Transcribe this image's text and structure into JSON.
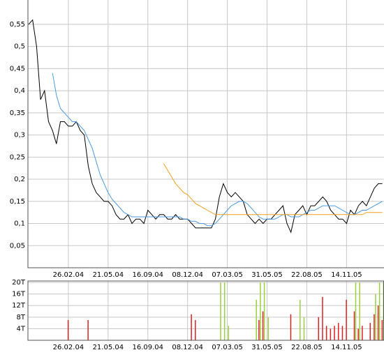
{
  "chart_data": [
    {
      "type": "line",
      "categories": [
        null,
        null,
        null,
        null,
        null,
        null,
        null,
        null,
        null,
        null,
        "26.02.04",
        null,
        null,
        null,
        null,
        null,
        null,
        null,
        null,
        null,
        "21.05.04",
        null,
        null,
        null,
        null,
        null,
        null,
        null,
        null,
        null,
        "16.09.04",
        null,
        null,
        null,
        null,
        null,
        null,
        null,
        null,
        null,
        "08.12.04",
        null,
        null,
        null,
        null,
        null,
        null,
        null,
        null,
        null,
        "07.03.05",
        null,
        null,
        null,
        null,
        null,
        null,
        null,
        null,
        null,
        "31.05.05",
        null,
        null,
        null,
        null,
        null,
        null,
        null,
        null,
        null,
        "22.08.05",
        null,
        null,
        null,
        null,
        null,
        null,
        null,
        null,
        null,
        "14.11.05",
        null,
        null,
        null,
        null,
        null,
        null,
        null,
        null,
        null
      ],
      "series": [
        {
          "color": "#000000",
          "values": [
            0.55,
            0.56,
            0.5,
            0.38,
            0.4,
            0.33,
            0.31,
            0.28,
            0.33,
            0.33,
            0.32,
            0.32,
            0.33,
            0.31,
            0.3,
            0.23,
            0.19,
            0.17,
            0.16,
            0.15,
            0.15,
            0.14,
            0.12,
            0.11,
            0.11,
            0.12,
            0.1,
            0.11,
            0.11,
            0.1,
            0.13,
            0.12,
            0.11,
            0.12,
            0.12,
            0.11,
            0.11,
            0.12,
            0.11,
            0.11,
            0.11,
            0.1,
            0.09,
            0.09,
            0.09,
            0.09,
            0.09,
            0.11,
            0.16,
            0.19,
            0.17,
            0.16,
            0.17,
            0.16,
            0.15,
            0.12,
            0.11,
            0.1,
            0.11,
            0.1,
            0.11,
            0.11,
            0.12,
            0.13,
            0.14,
            0.1,
            0.08,
            0.12,
            0.13,
            0.14,
            0.12,
            0.14,
            0.14,
            0.15,
            0.16,
            0.15,
            0.13,
            0.12,
            0.11,
            0.11,
            0.1,
            0.13,
            0.12,
            0.14,
            0.15,
            0.14,
            0.16,
            0.18,
            0.19,
            0.19
          ]
        },
        {
          "color": "#4a9be0",
          "values": [
            null,
            null,
            null,
            null,
            null,
            null,
            0.44,
            0.39,
            0.36,
            0.35,
            0.34,
            0.33,
            0.33,
            0.32,
            0.31,
            0.29,
            0.27,
            0.24,
            0.21,
            0.19,
            0.17,
            0.155,
            0.145,
            0.135,
            0.125,
            0.12,
            0.115,
            0.115,
            0.115,
            0.115,
            0.115,
            0.115,
            0.115,
            0.115,
            0.115,
            0.115,
            0.115,
            0.115,
            0.115,
            0.11,
            0.11,
            0.105,
            0.105,
            0.1,
            0.1,
            0.095,
            0.095,
            0.1,
            0.11,
            0.12,
            0.13,
            0.14,
            0.145,
            0.15,
            0.15,
            0.145,
            0.135,
            0.125,
            0.115,
            0.11,
            0.11,
            0.11,
            0.11,
            0.115,
            0.12,
            0.12,
            0.115,
            0.115,
            0.115,
            0.12,
            0.125,
            0.13,
            0.13,
            0.135,
            0.14,
            0.14,
            0.14,
            0.14,
            0.135,
            0.13,
            0.125,
            0.12,
            0.12,
            0.125,
            0.13,
            0.13,
            0.135,
            0.14,
            0.145,
            0.15
          ]
        },
        {
          "color": "#f0a020",
          "values": [
            null,
            null,
            null,
            null,
            null,
            null,
            null,
            null,
            null,
            null,
            null,
            null,
            null,
            null,
            null,
            null,
            null,
            null,
            null,
            null,
            null,
            null,
            null,
            null,
            null,
            null,
            null,
            null,
            null,
            null,
            null,
            null,
            null,
            null,
            0.235,
            0.22,
            0.205,
            0.19,
            0.18,
            0.17,
            0.165,
            0.155,
            0.145,
            0.14,
            0.135,
            0.13,
            0.125,
            0.12,
            0.12,
            0.12,
            0.12,
            0.12,
            0.12,
            0.12,
            0.12,
            0.12,
            0.12,
            0.12,
            0.12,
            0.12,
            0.12,
            0.12,
            0.12,
            0.12,
            0.12,
            0.12,
            0.12,
            0.12,
            0.12,
            0.12,
            0.12,
            0.12,
            0.12,
            0.12,
            0.12,
            0.12,
            0.12,
            0.12,
            0.12,
            0.12,
            0.12,
            0.12,
            0.12,
            0.12,
            0.12,
            0.125,
            0.125,
            0.125,
            0.125,
            0.125
          ]
        }
      ],
      "ylim": [
        0,
        0.605
      ],
      "yticks": [
        {
          "value": 0.05,
          "label": "0,05"
        },
        {
          "value": 0.1,
          "label": "0,1"
        },
        {
          "value": 0.15,
          "label": "0,15"
        },
        {
          "value": 0.2,
          "label": "0,2"
        },
        {
          "value": 0.25,
          "label": "0,25"
        },
        {
          "value": 0.3,
          "label": "0,3"
        },
        {
          "value": 0.35,
          "label": "0,35"
        },
        {
          "value": 0.4,
          "label": "0,4"
        },
        {
          "value": 0.45,
          "label": "0,45"
        },
        {
          "value": 0.5,
          "label": "0,5"
        },
        {
          "value": 0.55,
          "label": "0,55"
        }
      ],
      "grid": true
    },
    {
      "type": "bar",
      "categories": [
        null,
        null,
        null,
        null,
        null,
        null,
        null,
        null,
        null,
        null,
        "26.02.04",
        null,
        null,
        null,
        null,
        null,
        null,
        null,
        null,
        null,
        "21.05.04",
        null,
        null,
        null,
        null,
        null,
        null,
        null,
        null,
        null,
        "16.09.04",
        null,
        null,
        null,
        null,
        null,
        null,
        null,
        null,
        null,
        "08.12.04",
        null,
        null,
        null,
        null,
        null,
        null,
        null,
        null,
        null,
        "07.03.05",
        null,
        null,
        null,
        null,
        null,
        null,
        null,
        null,
        null,
        "31.05.05",
        null,
        null,
        null,
        null,
        null,
        null,
        null,
        null,
        null,
        "22.08.05",
        null,
        null,
        null,
        null,
        null,
        null,
        null,
        null,
        null,
        "14.11.05",
        null,
        null,
        null,
        null,
        null,
        null,
        null,
        null,
        null
      ],
      "series": [
        {
          "color": "#e02020",
          "values": [
            null,
            null,
            null,
            null,
            null,
            null,
            null,
            null,
            null,
            null,
            7,
            null,
            null,
            null,
            null,
            7,
            null,
            null,
            null,
            null,
            null,
            null,
            null,
            null,
            null,
            null,
            null,
            null,
            null,
            null,
            null,
            null,
            null,
            null,
            null,
            null,
            null,
            null,
            null,
            null,
            null,
            9,
            7,
            null,
            null,
            null,
            null,
            null,
            null,
            null,
            null,
            null,
            null,
            null,
            null,
            null,
            null,
            null,
            7,
            10,
            null,
            null,
            null,
            null,
            null,
            null,
            9,
            null,
            null,
            null,
            null,
            null,
            null,
            8,
            15,
            5,
            4,
            5,
            6,
            5,
            14,
            null,
            10,
            4,
            5,
            null,
            6,
            9,
            12,
            7
          ]
        },
        {
          "color": "#9ad040",
          "values": [
            null,
            null,
            null,
            null,
            null,
            null,
            null,
            null,
            null,
            null,
            null,
            null,
            null,
            null,
            null,
            null,
            null,
            null,
            null,
            null,
            null,
            null,
            null,
            null,
            null,
            null,
            null,
            null,
            null,
            null,
            null,
            null,
            null,
            null,
            null,
            null,
            null,
            null,
            null,
            null,
            null,
            null,
            null,
            null,
            null,
            null,
            null,
            null,
            20,
            20,
            5,
            null,
            null,
            null,
            null,
            null,
            null,
            14,
            20,
            20,
            8,
            null,
            null,
            null,
            null,
            null,
            null,
            null,
            14,
            8,
            null,
            null,
            null,
            null,
            null,
            null,
            null,
            null,
            null,
            null,
            null,
            null,
            20,
            20,
            null,
            null,
            null,
            16,
            20,
            20
          ]
        }
      ],
      "ylim": [
        0,
        20.5
      ],
      "yticks": [
        {
          "value": 4,
          "label": "4T"
        },
        {
          "value": 8,
          "label": "8T"
        },
        {
          "value": 12,
          "label": "12T"
        },
        {
          "value": 16,
          "label": "16T"
        },
        {
          "value": 20,
          "label": "20T"
        }
      ],
      "grid": true
    }
  ]
}
